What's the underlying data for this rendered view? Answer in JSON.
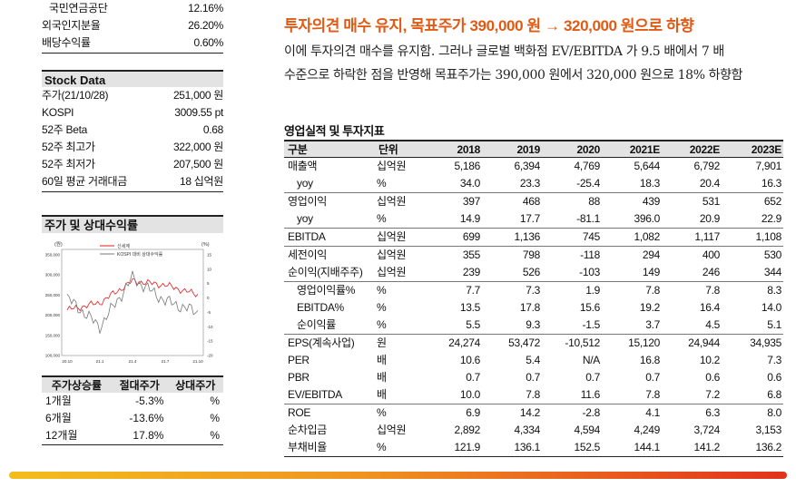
{
  "top_rows": [
    {
      "label": "국민연금공단",
      "value": "12.16%"
    },
    {
      "label": "외국인지분율",
      "value": "26.20%"
    },
    {
      "label": "배당수익률",
      "value": "0.60%"
    }
  ],
  "stock_data": {
    "title": "Stock Data",
    "rows": [
      {
        "label": "주가(21/10/28)",
        "value": "251,000 원"
      },
      {
        "label": "KOSPI",
        "value": "3009.55 pt"
      },
      {
        "label": "52주 Beta",
        "value": "0.68"
      },
      {
        "label": "52주 최고가",
        "value": "322,000 원"
      },
      {
        "label": "52주 최저가",
        "value": "207,500 원"
      },
      {
        "label": "60일 평균 거래대금",
        "value": "18 십억원"
      }
    ]
  },
  "price_chart": {
    "title": "주가 및 상대수익률",
    "left_unit": "(원)",
    "right_unit": "(%)",
    "legend": [
      "신세계",
      "KOSPI 대비 상대수익률"
    ],
    "colors": {
      "price": "#e31b1b",
      "relative": "#777777"
    },
    "left_ticks": [
      "350,000",
      "300,000",
      "250,000",
      "200,000",
      "150,000",
      "100,000"
    ],
    "right_ticks": [
      "15",
      "10",
      "5",
      "0",
      "-5",
      "-10",
      "-15",
      "-20"
    ],
    "x_ticks": [
      "20.10",
      "21.1",
      "21.4",
      "21.7",
      "21.10"
    ]
  },
  "chart_data": {
    "type": "line",
    "x": [
      "20.10",
      "21.1",
      "21.4",
      "21.7",
      "21.10"
    ],
    "y_left_range": [
      100000,
      350000
    ],
    "y_right_range": [
      -20,
      15
    ],
    "series": [
      {
        "name": "신세계",
        "axis": "left",
        "values": [
          213000,
          231000,
          285000,
          275000,
          251000
        ]
      },
      {
        "name": "KOSPI 대비 상대수익률",
        "axis": "right",
        "values": [
          0,
          -10,
          7,
          -1,
          -5
        ]
      }
    ]
  },
  "performance": {
    "headers": [
      "주가상승률",
      "절대주가",
      "상대주가"
    ],
    "rows": [
      {
        "period": "1개월",
        "abs": "-5.3%",
        "rel": "%"
      },
      {
        "period": "6개월",
        "abs": "-13.6%",
        "rel": "%"
      },
      {
        "period": "12개월",
        "abs": "17.8%",
        "rel": "%"
      }
    ]
  },
  "headline": "투자의견 매수 유지, 목표주가 390,000 원 → 320,000 원으로 하향",
  "body_lines": [
    "이에 투자의견 매수를 유지함. 그러나 글로벌 백화점 EV/EBITDA 가 9.5 배에서 7 배",
    "수준으로 하락한 점을 반영해 목표주가는 390,000 원에서 320,000 원으로 18% 하향함"
  ],
  "financials": {
    "title": "영업실적 및 투자지표",
    "headers": [
      "구분",
      "단위",
      "2018",
      "2019",
      "2020",
      "2021E",
      "2022E",
      "2023E"
    ],
    "rows": [
      {
        "label": "매출액",
        "unit": "십억원",
        "values": [
          "5,186",
          "6,394",
          "4,769",
          "5,644",
          "6,792",
          "7,901"
        ]
      },
      {
        "label": "yoy",
        "unit": "%",
        "values": [
          "34.0",
          "23.3",
          "-25.4",
          "18.3",
          "20.4",
          "16.3"
        ]
      },
      {
        "label": "영업이익",
        "unit": "십억원",
        "values": [
          "397",
          "468",
          "88",
          "439",
          "531",
          "652"
        ]
      },
      {
        "label": "yoy",
        "unit": "%",
        "values": [
          "14.9",
          "17.7",
          "-81.1",
          "396.0",
          "20.9",
          "22.9"
        ]
      },
      {
        "label": "EBITDA",
        "unit": "십억원",
        "values": [
          "699",
          "1,136",
          "745",
          "1,082",
          "1,117",
          "1,108"
        ]
      },
      {
        "label": "세전이익",
        "unit": "십억원",
        "values": [
          "355",
          "798",
          "-118",
          "294",
          "400",
          "530"
        ]
      },
      {
        "label": "순이익(지배주주)",
        "unit": "십억원",
        "values": [
          "239",
          "526",
          "-103",
          "149",
          "246",
          "344"
        ]
      },
      {
        "label": "영업이익률%",
        "unit": "%",
        "values": [
          "7.7",
          "7.3",
          "1.9",
          "7.8",
          "7.8",
          "8.3"
        ]
      },
      {
        "label": "EBITDA%",
        "unit": "%",
        "values": [
          "13.5",
          "17.8",
          "15.6",
          "19.2",
          "16.4",
          "14.0"
        ]
      },
      {
        "label": "순이익률",
        "unit": "%",
        "values": [
          "5.5",
          "9.3",
          "-1.5",
          "3.7",
          "4.5",
          "5.1"
        ]
      },
      {
        "label": "EPS(계속사업)",
        "unit": "원",
        "values": [
          "24,274",
          "53,472",
          "-10,512",
          "15,120",
          "24,944",
          "34,935"
        ]
      },
      {
        "label": "PER",
        "unit": "배",
        "values": [
          "10.6",
          "5.4",
          "N/A",
          "16.8",
          "10.2",
          "7.3"
        ]
      },
      {
        "label": "PBR",
        "unit": "배",
        "values": [
          "0.7",
          "0.7",
          "0.7",
          "0.7",
          "0.6",
          "0.6"
        ]
      },
      {
        "label": "EV/EBITDA",
        "unit": "배",
        "values": [
          "10.0",
          "7.8",
          "11.6",
          "7.8",
          "7.2",
          "6.8"
        ]
      },
      {
        "label": "ROE",
        "unit": "%",
        "values": [
          "6.9",
          "14.2",
          "-2.8",
          "4.1",
          "6.3",
          "8.0"
        ]
      },
      {
        "label": "순차입금",
        "unit": "십억원",
        "values": [
          "2,892",
          "4,334",
          "4,594",
          "4,249",
          "3,724",
          "3,153"
        ]
      },
      {
        "label": "부채비율",
        "unit": "%",
        "values": [
          "121.9",
          "136.1",
          "152.5",
          "144.1",
          "141.2",
          "136.2"
        ]
      }
    ]
  }
}
